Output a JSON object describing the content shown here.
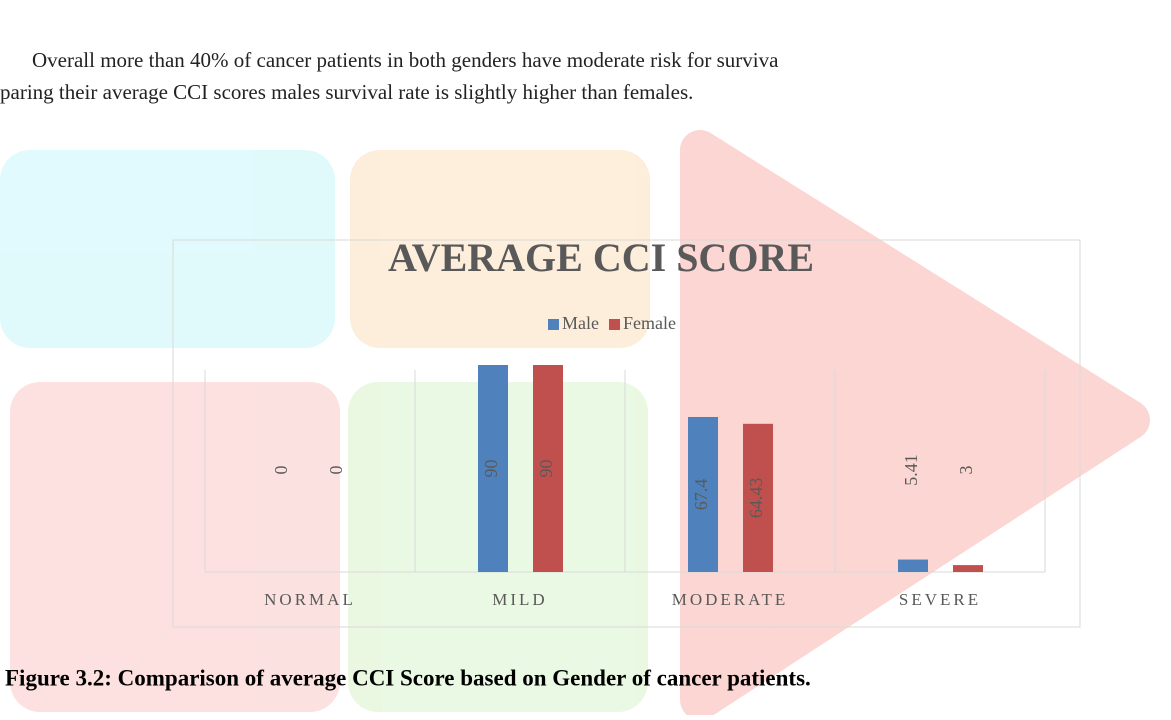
{
  "paragraph": [
    "Overall more than 40% of cancer patients in both genders have moderate risk for surviva",
    "paring their average CCI scores males survival rate is slightly higher than females."
  ],
  "caption": "Figure 3.2: Comparison of average CCI Score based on Gender of cancer patients.",
  "chart_data": {
    "type": "bar",
    "title": "AVERAGE CCI SCORE",
    "categories": [
      "NORMAL",
      "MILD",
      "MODERATE",
      "SEVERE"
    ],
    "series": [
      {
        "name": "Male",
        "color": "#4f81bd",
        "values": [
          0,
          90,
          67.4,
          5.41
        ]
      },
      {
        "name": "Female",
        "color": "#c0504d",
        "values": [
          0,
          90,
          64.43,
          3
        ]
      }
    ]
  }
}
